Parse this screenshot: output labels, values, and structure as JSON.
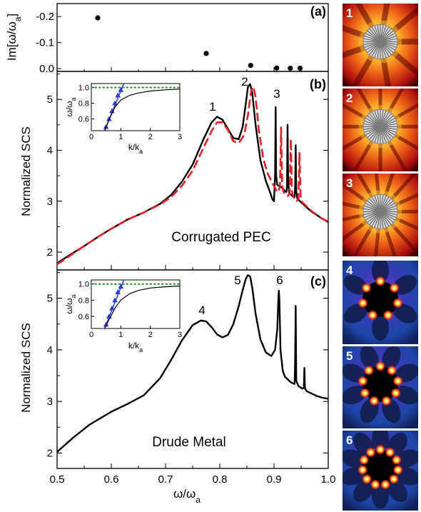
{
  "figure": {
    "panel_a": {
      "label": "(a)",
      "ylabel": "Im[ω/ω",
      "ylabel_sub": "a",
      "ylabel_end": "]",
      "yticks": [
        "-0.2",
        "-0.1",
        "0.0"
      ]
    },
    "panel_b": {
      "label": "(b)",
      "annotation": "Corrugated PEC",
      "peaks": [
        "1",
        "2",
        "3"
      ]
    },
    "panel_c": {
      "label": "(c)",
      "annotation": "Drude Metal",
      "peaks": [
        "4",
        "5",
        "6"
      ]
    },
    "ylabel_scs": "Normalized SCS",
    "xlabel": "ω/ω",
    "xlabel_sub": "a",
    "xticks": [
      "0.5",
      "0.6",
      "0.7",
      "0.8",
      "0.9",
      "1.0"
    ],
    "yticks_scs": [
      "2",
      "3",
      "4",
      "5"
    ],
    "inset": {
      "xlabel": "k/k",
      "xlabel_sub": "a",
      "ylabel": "ω/ω",
      "ylabel_sub": "a",
      "xticks": [
        "0",
        "1",
        "2",
        "3"
      ],
      "yticks": [
        "0.6",
        "0.8",
        "1.0"
      ]
    },
    "maps": [
      {
        "label": "1",
        "style": "pec"
      },
      {
        "label": "2",
        "style": "pec"
      },
      {
        "label": "3",
        "style": "pec"
      },
      {
        "label": "4",
        "style": "drude"
      },
      {
        "label": "5",
        "style": "drude"
      },
      {
        "label": "6",
        "style": "drude"
      }
    ]
  },
  "chart_data": [
    {
      "type": "scatter",
      "panel": "(a)",
      "xlim": [
        0.5,
        1.0
      ],
      "ylim": [
        -0.25,
        0.0
      ],
      "y_inverted": true,
      "ylabel": "Im[ω/ωa]",
      "points": [
        {
          "x": 0.575,
          "y": -0.195
        },
        {
          "x": 0.775,
          "y": -0.058
        },
        {
          "x": 0.857,
          "y": -0.012
        },
        {
          "x": 0.905,
          "y": -0.002
        },
        {
          "x": 0.93,
          "y": -0.001
        },
        {
          "x": 0.948,
          "y": -0.001
        }
      ]
    },
    {
      "type": "line",
      "panel": "(b)",
      "xlabel": "ω/ωa",
      "ylabel": "Normalized SCS",
      "xlim": [
        0.5,
        1.0
      ],
      "ylim": [
        1.65,
        5.55
      ],
      "series": [
        {
          "style": "solid-black",
          "x": [
            0.5,
            0.52,
            0.55,
            0.58,
            0.6,
            0.63,
            0.66,
            0.69,
            0.71,
            0.73,
            0.75,
            0.77,
            0.785,
            0.795,
            0.805,
            0.815,
            0.825,
            0.835,
            0.842,
            0.848,
            0.852,
            0.856,
            0.86,
            0.866,
            0.875,
            0.885,
            0.892,
            0.897,
            0.9,
            0.902,
            0.903,
            0.904,
            0.906,
            0.91,
            0.915,
            0.92,
            0.923,
            0.924,
            0.925,
            0.926,
            0.928,
            0.932,
            0.936,
            0.938,
            0.939,
            0.94,
            0.941,
            0.943,
            0.95,
            0.96,
            0.97,
            0.98,
            0.99,
            1.0
          ],
          "y": [
            1.78,
            1.92,
            2.12,
            2.33,
            2.46,
            2.64,
            2.78,
            2.95,
            3.12,
            3.38,
            3.72,
            4.22,
            4.55,
            4.66,
            4.6,
            4.42,
            4.24,
            4.22,
            4.45,
            4.92,
            5.25,
            5.3,
            5.12,
            4.5,
            3.8,
            3.4,
            3.2,
            3.04,
            3.0,
            3.5,
            4.85,
            3.5,
            3.32,
            3.3,
            3.26,
            3.2,
            3.18,
            3.3,
            4.5,
            3.4,
            3.16,
            3.12,
            3.08,
            3.08,
            3.3,
            4.1,
            3.2,
            3.05,
            2.98,
            2.88,
            2.79,
            2.72,
            2.65,
            2.59
          ]
        },
        {
          "style": "dashed-red",
          "x": [
            0.5,
            0.52,
            0.55,
            0.58,
            0.6,
            0.63,
            0.66,
            0.69,
            0.71,
            0.73,
            0.75,
            0.77,
            0.785,
            0.795,
            0.805,
            0.815,
            0.825,
            0.835,
            0.845,
            0.852,
            0.858,
            0.862,
            0.866,
            0.872,
            0.88,
            0.888,
            0.895,
            0.9,
            0.904,
            0.908,
            0.911,
            0.913,
            0.915,
            0.917,
            0.92,
            0.925,
            0.929,
            0.931,
            0.933,
            0.935,
            0.938,
            0.942,
            0.945,
            0.947,
            0.949,
            0.952,
            0.96,
            0.97,
            0.98,
            0.99,
            1.0
          ],
          "y": [
            1.76,
            1.9,
            2.12,
            2.33,
            2.46,
            2.64,
            2.78,
            2.94,
            3.08,
            3.3,
            3.6,
            4.05,
            4.38,
            4.55,
            4.55,
            4.4,
            4.18,
            4.14,
            4.3,
            4.7,
            5.18,
            5.25,
            5.05,
            4.4,
            3.85,
            3.55,
            3.4,
            3.3,
            3.22,
            3.18,
            3.3,
            4.45,
            3.35,
            3.2,
            3.14,
            3.1,
            3.15,
            4.22,
            3.2,
            3.1,
            3.05,
            3.0,
            3.05,
            3.95,
            3.1,
            2.98,
            2.9,
            2.8,
            2.72,
            2.65,
            2.6
          ]
        }
      ]
    },
    {
      "type": "line",
      "panel": "(c)",
      "xlabel": "ω/ωa",
      "ylabel": "Normalized SCS",
      "xlim": [
        0.5,
        1.0
      ],
      "ylim": [
        1.7,
        5.55
      ],
      "series": [
        {
          "style": "solid-black",
          "x": [
            0.5,
            0.53,
            0.56,
            0.6,
            0.63,
            0.66,
            0.69,
            0.71,
            0.73,
            0.75,
            0.765,
            0.775,
            0.785,
            0.795,
            0.805,
            0.815,
            0.825,
            0.835,
            0.842,
            0.848,
            0.852,
            0.856,
            0.86,
            0.866,
            0.875,
            0.885,
            0.895,
            0.902,
            0.906,
            0.908,
            0.909,
            0.91,
            0.912,
            0.916,
            0.92,
            0.93,
            0.935,
            0.938,
            0.939,
            0.94,
            0.941,
            0.945,
            0.952,
            0.955,
            0.956,
            0.957,
            0.96,
            0.97,
            0.98,
            0.99,
            1.0
          ],
          "y": [
            2.02,
            2.3,
            2.55,
            2.8,
            2.95,
            3.12,
            3.45,
            3.8,
            4.18,
            4.48,
            4.57,
            4.55,
            4.44,
            4.3,
            4.24,
            4.29,
            4.5,
            4.85,
            5.15,
            5.38,
            5.45,
            5.42,
            5.2,
            4.7,
            4.2,
            3.95,
            3.88,
            4.0,
            4.4,
            5.0,
            5.15,
            4.95,
            4.0,
            3.6,
            3.48,
            3.38,
            3.35,
            3.34,
            3.8,
            4.85,
            3.4,
            3.3,
            3.25,
            3.26,
            3.65,
            3.26,
            3.2,
            3.15,
            3.1,
            3.07,
            3.05
          ]
        }
      ]
    },
    {
      "type": "line",
      "panel": "(b) inset",
      "xlabel": "k/ka",
      "ylabel": "ω/ωa",
      "xlim": [
        0,
        3
      ],
      "ylim": [
        0.45,
        1.05
      ],
      "series": [
        {
          "style": "dotted-green",
          "x": [
            0,
            3
          ],
          "y": [
            1.0,
            1.0
          ]
        },
        {
          "style": "solid-blue",
          "x": [
            0.45,
            1.1
          ],
          "y": [
            0.45,
            1.05
          ]
        },
        {
          "style": "triangles-blue",
          "x": [
            0.5,
            0.6,
            0.7,
            0.8,
            0.9,
            1.0
          ],
          "y": [
            0.5,
            0.6,
            0.7,
            0.8,
            0.9,
            0.97
          ]
        },
        {
          "style": "solid-black",
          "x": [
            0.45,
            0.6,
            0.8,
            1.0,
            1.3,
            1.6,
            2.0,
            2.5,
            3.0
          ],
          "y": [
            0.45,
            0.59,
            0.75,
            0.84,
            0.9,
            0.93,
            0.955,
            0.97,
            0.98
          ]
        }
      ]
    },
    {
      "type": "line",
      "panel": "(c) inset",
      "xlabel": "k/ka",
      "ylabel": "ω/ωa",
      "xlim": [
        0,
        3
      ],
      "ylim": [
        0.45,
        1.05
      ],
      "series": [
        {
          "style": "dotted-green",
          "x": [
            0,
            3
          ],
          "y": [
            1.0,
            1.0
          ]
        },
        {
          "style": "solid-blue",
          "x": [
            0.45,
            1.1
          ],
          "y": [
            0.45,
            1.05
          ]
        },
        {
          "style": "triangles-blue",
          "x": [
            0.5,
            0.6,
            0.7,
            0.8,
            0.9,
            1.0
          ],
          "y": [
            0.5,
            0.6,
            0.7,
            0.8,
            0.9,
            0.97
          ]
        },
        {
          "style": "solid-black",
          "x": [
            0.45,
            0.6,
            0.8,
            1.0,
            1.3,
            1.6,
            2.0,
            2.5,
            3.0
          ],
          "y": [
            0.45,
            0.56,
            0.7,
            0.8,
            0.88,
            0.92,
            0.95,
            0.965,
            0.975
          ]
        }
      ]
    }
  ]
}
